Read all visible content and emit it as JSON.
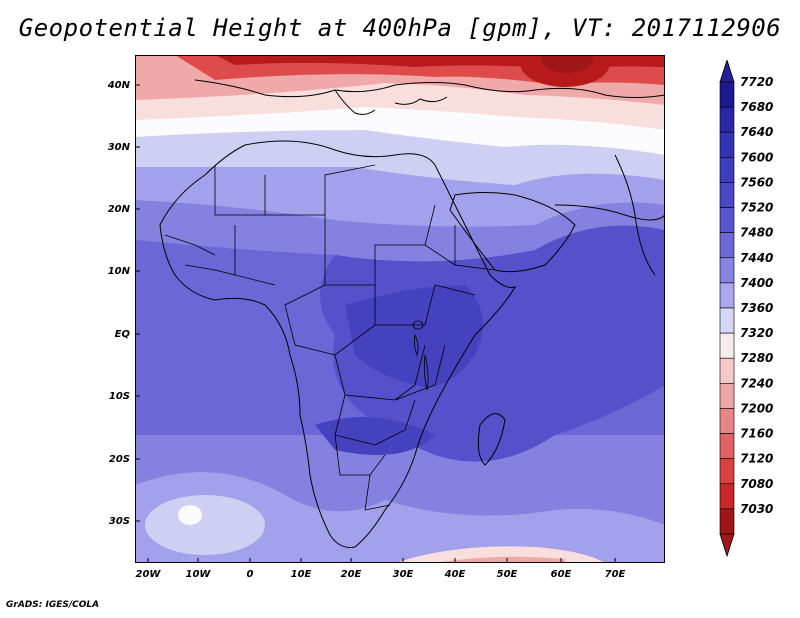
{
  "title": "Geopotential Height at 400hPa [gpm], VT: 2017112906",
  "credit": "GrADS: IGES/COLA",
  "lat_labels": [
    "40N",
    "30N",
    "20N",
    "10N",
    "EQ",
    "10S",
    "20S",
    "30S"
  ],
  "lon_labels": [
    "20W",
    "10W",
    "0",
    "10E",
    "20E",
    "30E",
    "40E",
    "50E",
    "60E",
    "70E"
  ],
  "colorbar": {
    "labels": [
      "7720",
      "7680",
      "7640",
      "7600",
      "7560",
      "7520",
      "7480",
      "7440",
      "7400",
      "7360",
      "7320",
      "7280",
      "7240",
      "7200",
      "7160",
      "7120",
      "7080",
      "7030"
    ],
    "colors": [
      "#1d1a8f",
      "#2a27a6",
      "#3533b5",
      "#3f3dbf",
      "#4a48c7",
      "#5955cf",
      "#6e69d8",
      "#8784e2",
      "#a9a7ee",
      "#d6d6f7",
      "#f6ecec",
      "#f3c9c9",
      "#eda7a7",
      "#e78585",
      "#e06262",
      "#d84242",
      "#c82828",
      "#9e1616"
    ],
    "top_color": "#251f9c",
    "bottom_color": "#a01818"
  },
  "field_colors": {
    "deep_red": "#b61a1a",
    "red": "#dd4b4b",
    "pink": "#f0a9a9",
    "light_pink": "#f9dede",
    "white": "#fbfbfe",
    "pale_lavender": "#cfcff4",
    "lavender": "#a4a1ec",
    "light_purple": "#8581e0",
    "purple": "#6b67d6",
    "blue_purple": "#5551cb",
    "indigo": "#4542c0"
  }
}
